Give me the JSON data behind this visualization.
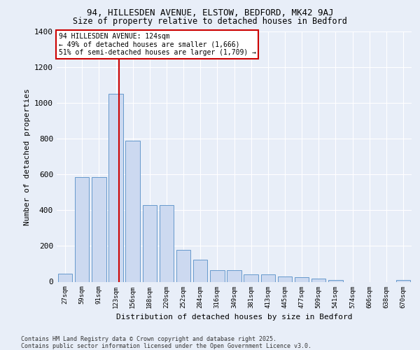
{
  "title_line1": "94, HILLESDEN AVENUE, ELSTOW, BEDFORD, MK42 9AJ",
  "title_line2": "Size of property relative to detached houses in Bedford",
  "xlabel": "Distribution of detached houses by size in Bedford",
  "ylabel": "Number of detached properties",
  "categories": [
    "27sqm",
    "59sqm",
    "91sqm",
    "123sqm",
    "156sqm",
    "188sqm",
    "220sqm",
    "252sqm",
    "284sqm",
    "316sqm",
    "349sqm",
    "381sqm",
    "413sqm",
    "445sqm",
    "477sqm",
    "509sqm",
    "541sqm",
    "574sqm",
    "606sqm",
    "638sqm",
    "670sqm"
  ],
  "values": [
    45,
    585,
    585,
    1050,
    790,
    430,
    430,
    178,
    125,
    65,
    65,
    40,
    40,
    28,
    25,
    18,
    10,
    0,
    0,
    0,
    10
  ],
  "bar_color": "#ccd9f0",
  "bar_edge_color": "#6699cc",
  "red_line_x": 3.18,
  "annotation_title": "94 HILLESDEN AVENUE: 124sqm",
  "annotation_line1": "← 49% of detached houses are smaller (1,666)",
  "annotation_line2": "51% of semi-detached houses are larger (1,709) →",
  "ylim": [
    0,
    1400
  ],
  "yticks": [
    0,
    200,
    400,
    600,
    800,
    1000,
    1200,
    1400
  ],
  "background_color": "#e8eef8",
  "grid_color": "#ffffff",
  "footer_line1": "Contains HM Land Registry data © Crown copyright and database right 2025.",
  "footer_line2": "Contains public sector information licensed under the Open Government Licence v3.0."
}
